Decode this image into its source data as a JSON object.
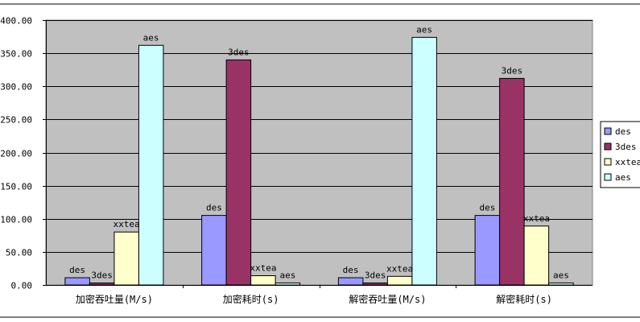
{
  "chart_data": {
    "type": "bar",
    "title": "",
    "xlabel": "",
    "ylabel": "",
    "ylim": [
      0,
      400
    ],
    "y_ticks": [
      "0.00",
      "50.00",
      "100.00",
      "150.00",
      "200.00",
      "250.00",
      "300.00",
      "350.00",
      "400.00"
    ],
    "grid": true,
    "legend_position": "right",
    "categories": [
      "加密吞吐量(M/s)",
      "加密耗时(s)",
      "解密吞吐量(M/s)",
      "解密耗时(s)"
    ],
    "series": [
      {
        "name": "des",
        "color": "#9999ff",
        "values": [
          11,
          105,
          11,
          105
        ]
      },
      {
        "name": "3des",
        "color": "#993366",
        "values": [
          3,
          340,
          3,
          312
        ]
      },
      {
        "name": "xxtea",
        "color": "#ffffcc",
        "values": [
          80,
          14,
          13,
          89
        ]
      },
      {
        "name": "aes",
        "color": "#ccffff",
        "values": [
          362,
          3,
          374,
          3
        ]
      }
    ],
    "plot_background": "#c0c0c0"
  }
}
